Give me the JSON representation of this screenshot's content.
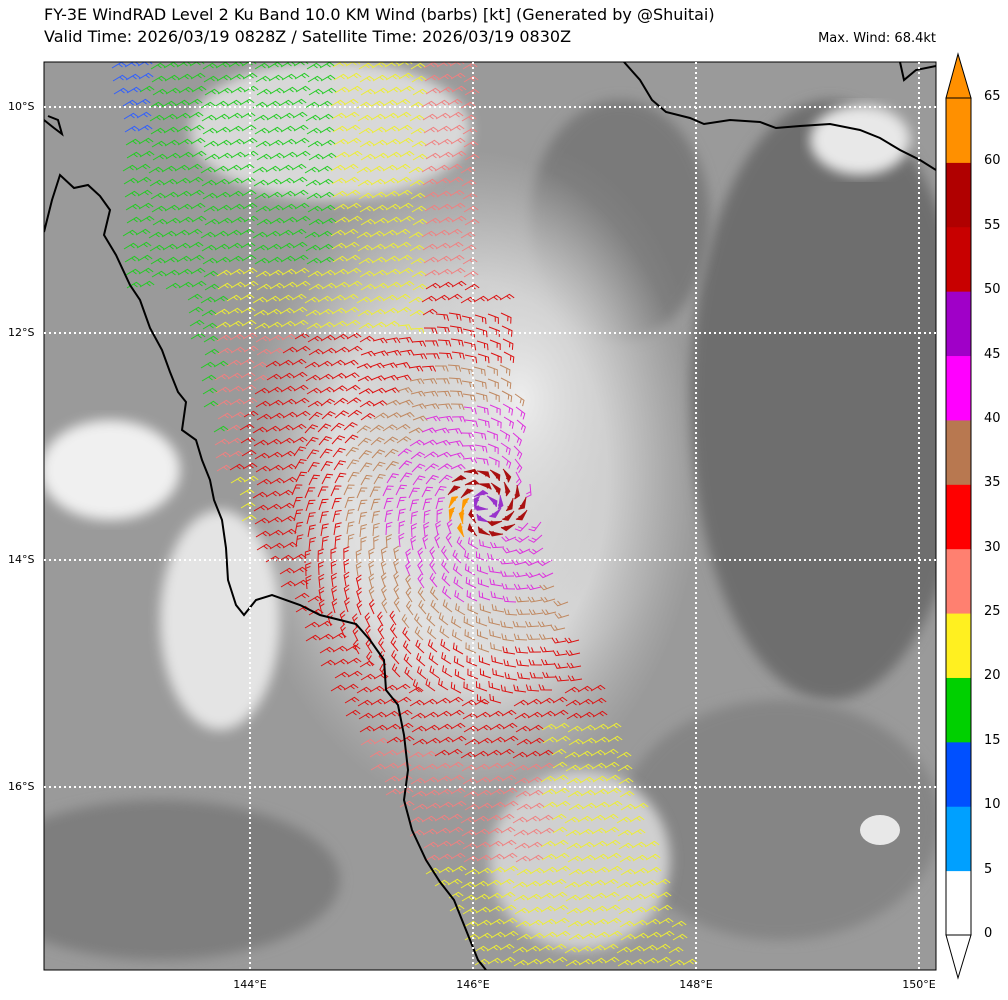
{
  "title_line1": "FY-3E WindRAD Level 2 Ku Band 10.0 KM Wind (barbs) [kt] (Generated by @Shuitai)",
  "title_line2": "Valid Time: 2026/03/19 0828Z / Satellite Time: 2026/03/19 0830Z",
  "max_wind": "Max. Wind: 68.4kt",
  "lat_labels": [
    "10°S",
    "12°S",
    "14°S",
    "16°S"
  ],
  "lon_labels": [
    "144°E",
    "146°E",
    "148°E",
    "150°E"
  ],
  "colorbar": {
    "ticks": [
      "0",
      "5",
      "10",
      "15",
      "20",
      "25",
      "30",
      "35",
      "40",
      "45",
      "50",
      "55",
      "60",
      "65"
    ],
    "colors": [
      "#ffffff",
      "#00a0ff",
      "#0050ff",
      "#00d000",
      "#fff020",
      "#ff8070",
      "#ff0000",
      "#b87850",
      "#ff00ff",
      "#a000c8",
      "#c80000",
      "#b00000",
      "#ff9000"
    ]
  },
  "barb_colors": {
    "light_blue": "#3060ff",
    "green": "#22cc22",
    "yellow": "#eeee33",
    "pink": "#f08080",
    "red": "#dd1111",
    "brown": "#c08860",
    "magenta": "#dd33dd",
    "purple": "#9933cc",
    "orange": "#ff9900",
    "dark_red": "#aa1111"
  }
}
